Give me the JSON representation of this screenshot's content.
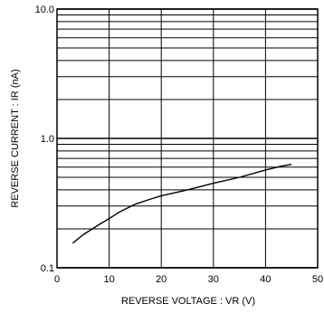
{
  "chart_data": {
    "type": "line",
    "xlabel": "REVERSE VOLTAGE : VR (V)",
    "ylabel": "REVERSE CURRENT : IR (nA)",
    "xlim": [
      0,
      50
    ],
    "ylim": [
      0.1,
      10.0
    ],
    "yscale": "log",
    "grid": true,
    "x_ticks": [
      "0",
      "10",
      "20",
      "30",
      "40",
      "50"
    ],
    "y_ticks": [
      "0.1",
      "1.0",
      "10.0"
    ],
    "series": [
      {
        "x": [
          3,
          5,
          8,
          10,
          12,
          15,
          18,
          20,
          25,
          30,
          35,
          40,
          43,
          45
        ],
        "values": [
          0.155,
          0.18,
          0.215,
          0.24,
          0.27,
          0.31,
          0.34,
          0.36,
          0.4,
          0.45,
          0.5,
          0.57,
          0.61,
          0.63
        ]
      }
    ]
  }
}
